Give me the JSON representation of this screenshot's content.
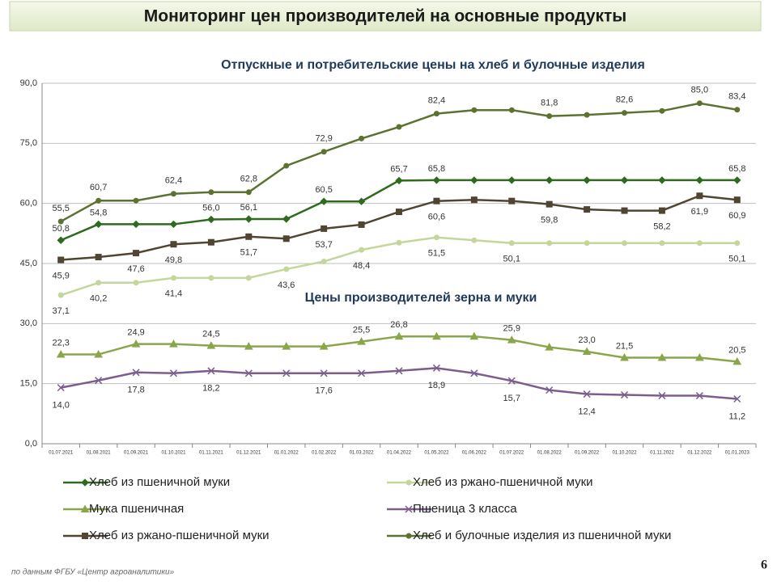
{
  "header": {
    "title": "Мониторинг цен производителей на основные продукты"
  },
  "chart_data": {
    "type": "line",
    "title": "Отпускные и потребительские цены на хлеб и булочные изделия",
    "annotation": "Цены производителей зерна и муки",
    "categories": [
      "01.07.2021",
      "01.08.2021",
      "01.09.2021",
      "01.10.2021",
      "01.11.2021",
      "01.12.2021",
      "01.01.2022",
      "01.02.2022",
      "01.03.2022",
      "01.04.2022",
      "01.05.2022",
      "01.06.2022",
      "01.07.2022",
      "01.08.2022",
      "01.09.2022",
      "01.10.2022",
      "01.11.2022",
      "01.12.2022",
      "01.01.2023"
    ],
    "ylim": [
      0,
      90
    ],
    "yticks": [
      {
        "value": 0,
        "label": "0,0"
      },
      {
        "value": 15,
        "label": "15,0"
      },
      {
        "value": 30,
        "label": "30,0"
      },
      {
        "value": 45,
        "label": "45,0"
      },
      {
        "value": 60,
        "label": "60,0"
      },
      {
        "value": 75,
        "label": "75,0"
      },
      {
        "value": 90,
        "label": "90,0"
      }
    ],
    "grid": true,
    "series": [
      {
        "name": "Хлеб из пшеничной муки",
        "color": "#2e6b1e",
        "marker": "diamond",
        "values": [
          50.8,
          54.8,
          54.8,
          54.8,
          56.0,
          56.1,
          56.1,
          60.5,
          60.5,
          65.7,
          65.8,
          65.8,
          65.8,
          65.8,
          65.8,
          65.8,
          65.8,
          65.8,
          65.8
        ],
        "value_labels": [
          "50,8",
          "54,8",
          null,
          null,
          "56,0",
          "56,1",
          null,
          "60,5",
          null,
          "65,7",
          "65,8",
          null,
          null,
          null,
          null,
          null,
          null,
          null,
          "65,8"
        ]
      },
      {
        "name": "Хлеб из ржано-пшеничной муки",
        "color": "#c4d79b",
        "marker": "circle",
        "values": [
          37.1,
          40.2,
          40.2,
          41.4,
          41.4,
          41.4,
          43.6,
          45.5,
          48.4,
          50.2,
          51.5,
          50.8,
          50.1,
          50.1,
          50.1,
          50.1,
          50.1,
          50.1,
          50.1
        ],
        "value_labels": [
          "37,1",
          "40,2",
          null,
          "41,4",
          null,
          null,
          "43,6",
          null,
          "48,4",
          null,
          "51,5",
          null,
          "50,1",
          null,
          null,
          null,
          null,
          null,
          "50,1"
        ]
      },
      {
        "name": "Мука пшеничная",
        "color": "#8aa64a",
        "marker": "triangle",
        "values": [
          22.3,
          22.3,
          24.9,
          24.9,
          24.5,
          24.3,
          24.3,
          24.3,
          25.5,
          26.8,
          26.8,
          26.8,
          25.9,
          24.1,
          23.0,
          21.5,
          21.5,
          21.5,
          20.5
        ],
        "value_labels": [
          "22,3",
          null,
          "24,9",
          null,
          "24,5",
          null,
          null,
          null,
          "25,5",
          "26,8",
          null,
          null,
          "25,9",
          null,
          "23,0",
          "21,5",
          null,
          null,
          "20,5"
        ]
      },
      {
        "name": "Пшеница 3 класса",
        "color": "#7b5e8e",
        "marker": "x",
        "values": [
          14.0,
          15.8,
          17.8,
          17.6,
          18.2,
          17.6,
          17.6,
          17.6,
          17.6,
          18.2,
          18.9,
          17.6,
          15.7,
          13.4,
          12.4,
          12.2,
          12.0,
          12.0,
          11.2
        ],
        "value_labels": [
          "14,0",
          null,
          "17,8",
          null,
          "18,2",
          null,
          null,
          "17,6",
          null,
          null,
          "18,9",
          null,
          "15,7",
          null,
          "12,4",
          null,
          null,
          null,
          "11,2"
        ]
      },
      {
        "name": "Хлеб из ржано-пшеничной муки",
        "color": "#4f4531",
        "marker": "square",
        "values": [
          45.9,
          46.6,
          47.6,
          49.8,
          50.3,
          51.7,
          51.2,
          53.7,
          54.7,
          57.9,
          60.6,
          60.9,
          60.6,
          59.8,
          58.5,
          58.2,
          58.2,
          61.9,
          60.9
        ],
        "value_labels": [
          "45,9",
          null,
          "47,6",
          "49,8",
          null,
          "51,7",
          null,
          "53,7",
          null,
          null,
          "60,6",
          null,
          null,
          "59,8",
          null,
          null,
          "58,2",
          "61,9",
          "60,9"
        ]
      },
      {
        "name": "Хлеб и булочные изделия из пшеничной муки",
        "color": "#5c7231",
        "marker": "circle",
        "values": [
          55.5,
          60.7,
          60.7,
          62.4,
          62.8,
          62.8,
          69.4,
          72.9,
          76.2,
          79.1,
          82.4,
          83.3,
          83.3,
          81.8,
          82.1,
          82.6,
          83.1,
          85.0,
          83.4
        ],
        "value_labels": [
          "55,5",
          "60,7",
          null,
          "62,4",
          null,
          "62,8",
          null,
          "72,9",
          null,
          null,
          "82,4",
          null,
          null,
          "81,8",
          null,
          "82,6",
          null,
          "85,0",
          "83,4"
        ]
      }
    ]
  },
  "footer": {
    "source": "по данным ФГБУ «Центр агроаналитики»",
    "page": "6"
  }
}
